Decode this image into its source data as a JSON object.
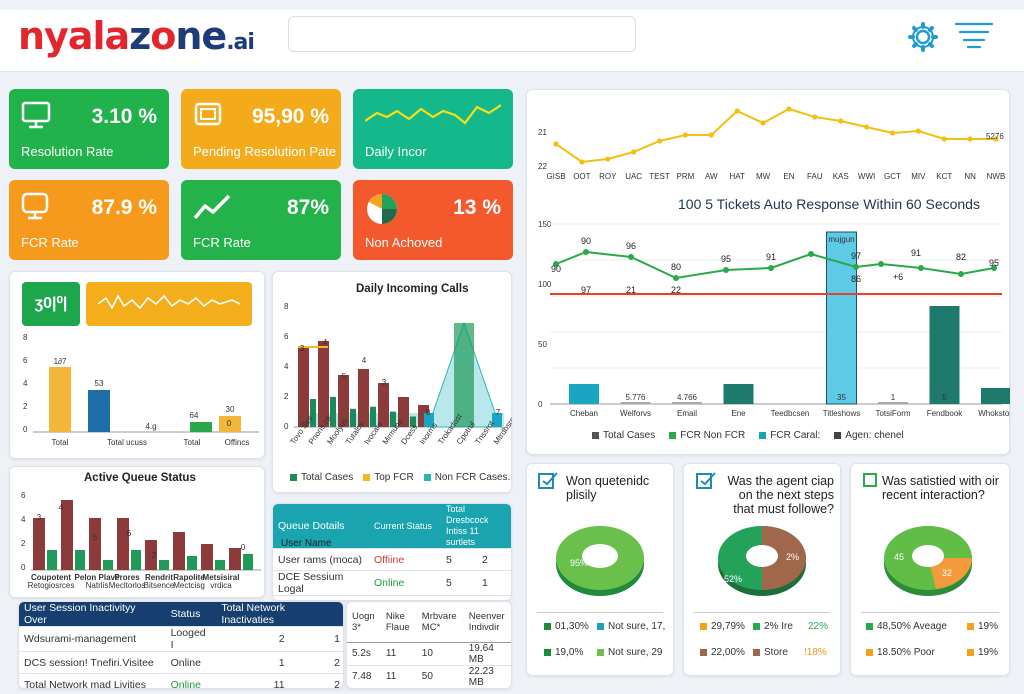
{
  "header": {
    "logo_main": "nyalazone",
    "logo_suffix": ".ai"
  },
  "kpis": [
    {
      "value": "3.10 %",
      "label": "Resolution Rate",
      "color": "#21b24b",
      "icon": "monitor-icon"
    },
    {
      "value": "95,90 %",
      "label": "Pending Resolution Pate",
      "color": "#f4ab1b",
      "icon": "monitor-icon"
    },
    {
      "value": "",
      "label": "Daily Incor",
      "color": "#14b88a",
      "icon": "sparkline-icon"
    },
    {
      "value": "87.9 %",
      "label": "FCR Rate",
      "color": "#f59a1d",
      "icon": "monitor-icon"
    },
    {
      "value": "87%",
      "label": "FCR Rate",
      "color": "#24b24b",
      "icon": "trend-up-icon"
    },
    {
      "value": "13 %",
      "label": "Non Achoved",
      "color": "#f4582d",
      "icon": "pie-icon"
    }
  ],
  "top_line": {
    "ytick_top": "21",
    "ytick_bottom": "22",
    "end_label": "5276",
    "categories": [
      "GISB",
      "OOT",
      "ROY",
      "UAC",
      "TEST",
      "PRM",
      "AW",
      "HAT",
      "MW",
      "EN",
      "FAU",
      "KAS",
      "WWI",
      "GCT",
      "MIV",
      "KCT",
      "NN",
      "NWB"
    ]
  },
  "auto_response": {
    "title": "100 5 Tickets Auto Response Within 60 Seconds",
    "yticks": [
      "150",
      "100",
      "50",
      "0"
    ],
    "line_values": [
      90,
      96,
      80,
      95,
      91,
      97,
      91,
      82,
      95
    ],
    "line_labels": [
      "90",
      "96",
      "80",
      "95",
      "91",
      "97",
      "91",
      "82",
      "95"
    ],
    "extra_labels": [
      "90",
      "86",
      "+6"
    ],
    "red_labels": [
      "97",
      "21",
      "22"
    ],
    "categories": [
      "Cheban",
      "Welforvs",
      "Email",
      "Ene",
      "Teedbcsen",
      "Titleshows",
      "TotsiForm",
      "Fendbook",
      "Whokstop"
    ],
    "bar_labels": [
      "",
      "5.776",
      "4.766",
      "",
      "",
      "35",
      "1",
      "5",
      ""
    ],
    "top_label": "mujgun",
    "legend": [
      "Total Cases",
      "FCR Non FCR",
      "FCR Caral:",
      "Agen: chenel"
    ]
  },
  "mini_chart": {
    "badge": "ʒ0|⁰|",
    "yticks": [
      "8",
      "6",
      "4",
      "2",
      "0"
    ],
    "categories": [
      "Total",
      "Total ucuss",
      "Total",
      "Offincs"
    ],
    "labels": [
      "1∂7",
      "53",
      "4.g",
      "64",
      "30"
    ],
    "extra_label": "0"
  },
  "daily_calls": {
    "title": "Daily Incoming Calls",
    "yticks": [
      "8",
      "6",
      "4",
      "2",
      "0"
    ],
    "labels": [
      "3",
      "4",
      "5",
      "4",
      "3",
      "0",
      "7"
    ],
    "legend": [
      "Total Cases",
      "Top FCR",
      "Non FCR Cases."
    ]
  },
  "queue_status": {
    "title": "Active Queue Status",
    "yticks": [
      "6",
      "4",
      "2",
      "0"
    ],
    "labels": [
      "3",
      "4",
      "5",
      "6",
      "2",
      "0"
    ],
    "categories": [
      "Coupotent",
      "Retogiosrces",
      "Pelon Plave",
      "Natrlis",
      "Prores",
      "Mecltorlos",
      "Rendrit",
      "Bitsence",
      "Rapolite",
      "Mectcisg",
      "Metsisiral",
      "vrdica"
    ]
  },
  "queue_details": {
    "headers": [
      "Queue Dotails",
      "Current Status",
      "Total Dresbcock Intiss 11 surtlets"
    ],
    "rows": [
      [
        "User Name",
        "",
        ""
      ],
      [
        "User rams (moca)",
        "Offiine",
        "5",
        "2"
      ],
      [
        "DCE Sessium Logal",
        "Online",
        "5",
        "1"
      ]
    ]
  },
  "session_table": {
    "headers": [
      "User Session Inactivityy Over",
      "Status",
      "Total Network Inactivaties"
    ],
    "rows": [
      [
        "Wdsurami-management",
        "Looged I",
        "2",
        "1"
      ],
      [
        "DCS session! Tnefiri.Visitee",
        "Online",
        "1",
        "2"
      ],
      [
        "Total Network mad Livities",
        "Online",
        "11",
        "2"
      ]
    ]
  },
  "net_table": {
    "headers": [
      "Uogn 3*",
      "Nike Flaue",
      "Mrbvare MC*",
      "Neenver Indivdir"
    ],
    "rows": [
      [
        "5.2s",
        "11",
        "10",
        "19.64 MB"
      ],
      [
        "7.48",
        "11",
        "50",
        "22.23 MB"
      ]
    ]
  },
  "feedback": [
    {
      "title": "Won quetenidc plisily",
      "center": "95%",
      "legend": [
        [
          "01,30%",
          "Not sure, 17,"
        ],
        [
          "19,0%",
          "Not sure, 29"
        ]
      ]
    },
    {
      "title": "Was the agent ciap on the next steps that must followe?",
      "center": "52%",
      "right": "2%",
      "legend": [
        [
          "29,79%",
          "2% Ire",
          "22%"
        ],
        [
          "22,00%",
          "Store",
          "!18%"
        ]
      ]
    },
    {
      "title": "Was satistied with oir recent interaction?",
      "center": "45",
      "right": "32",
      "legend": [
        [
          "48,50% Aveage",
          "19%"
        ],
        [
          "18.50% Poor",
          "19%"
        ]
      ]
    }
  ]
}
